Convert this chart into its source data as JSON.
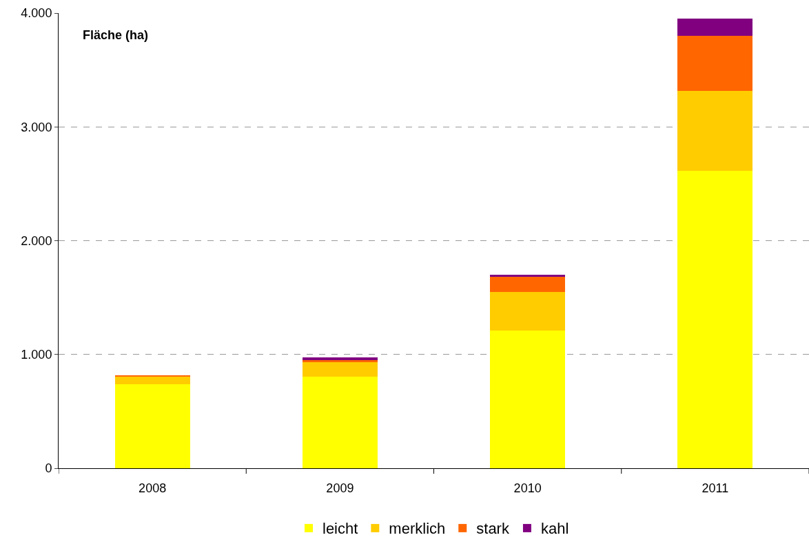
{
  "chart_data": {
    "type": "bar",
    "stacked": true,
    "ylabel": "Fläche (ha)",
    "categories": [
      "2008",
      "2009",
      "2010",
      "2011"
    ],
    "series": [
      {
        "name": "leicht",
        "color": "#ffff00",
        "values": [
          738,
          805,
          1210,
          2614
        ]
      },
      {
        "name": "merklich",
        "color": "#ffcc00",
        "values": [
          67,
          127,
          339,
          702
        ]
      },
      {
        "name": "stark",
        "color": "#ff6600",
        "values": [
          12,
          18,
          139,
          484
        ]
      },
      {
        "name": "kahl",
        "color": "#800080",
        "values": [
          0,
          24,
          12,
          152
        ]
      }
    ],
    "ylim": [
      0,
      4000
    ],
    "yticks": [
      0,
      {
        "value": 1000,
        "label": "1.000"
      },
      {
        "value": 2000,
        "label": "2.000"
      },
      {
        "value": 3000,
        "label": "3.000"
      },
      {
        "value": 4000,
        "label": "4.000"
      }
    ],
    "grid": "y",
    "legend": "bottom"
  }
}
